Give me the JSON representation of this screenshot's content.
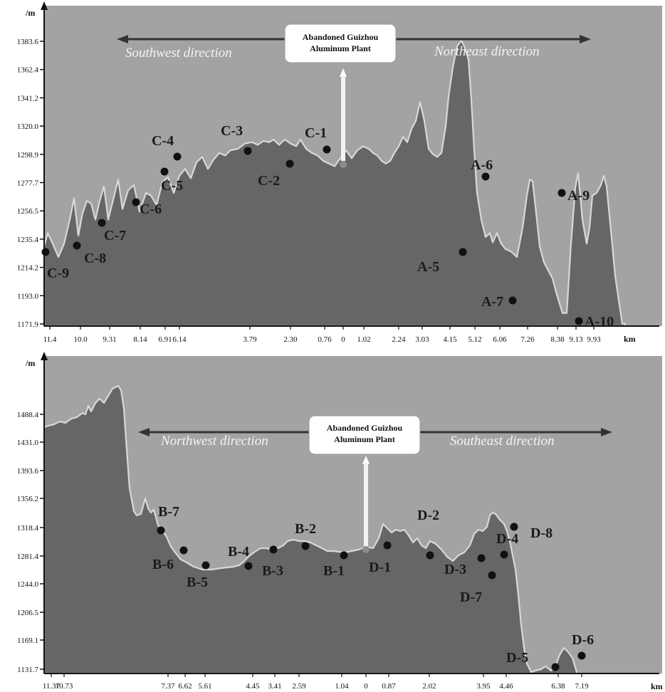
{
  "chart_data": [
    {
      "type": "area",
      "y_unit": "/m",
      "x_unit": "km",
      "y_ticks": [
        "1383.6",
        "1362.4",
        "1341.2",
        "1320.0",
        "1298.9",
        "1277.7",
        "1256.5",
        "1235.4",
        "1214.2",
        "1193.0",
        "1171.9"
      ],
      "x_ticks": [
        "11.4",
        "10.0",
        "9.31",
        "8.14",
        "6.91",
        "6.14",
        "3.79",
        "2.30",
        "0.76",
        "0",
        "1.02",
        "2.24",
        "3.03",
        "4.15",
        "5.12",
        "6.06",
        "7.26",
        "8.38",
        "9.13",
        "9.93"
      ],
      "ylim": [
        1171.9,
        1383.6
      ],
      "directions": {
        "left": "Southwest direction",
        "right": "Northeast direction"
      },
      "annotation": [
        "Abandoned Guizhou",
        "Aluminum Plant"
      ],
      "profile": [
        [
          0,
          1230
        ],
        [
          5,
          1240
        ],
        [
          12,
          1232
        ],
        [
          20,
          1222
        ],
        [
          28,
          1232
        ],
        [
          36,
          1250
        ],
        [
          42,
          1266
        ],
        [
          48,
          1238
        ],
        [
          54,
          1255
        ],
        [
          60,
          1264
        ],
        [
          66,
          1262
        ],
        [
          72,
          1250
        ],
        [
          78,
          1264
        ],
        [
          84,
          1275
        ],
        [
          90,
          1250
        ],
        [
          97,
          1265
        ],
        [
          104,
          1280
        ],
        [
          110,
          1258
        ],
        [
          118,
          1272
        ],
        [
          126,
          1276
        ],
        [
          134,
          1256
        ],
        [
          143,
          1270
        ],
        [
          150,
          1268
        ],
        [
          158,
          1261
        ],
        [
          166,
          1278
        ],
        [
          174,
          1282
        ],
        [
          182,
          1270
        ],
        [
          190,
          1283
        ],
        [
          198,
          1288
        ],
        [
          206,
          1281
        ],
        [
          214,
          1293
        ],
        [
          222,
          1297
        ],
        [
          230,
          1288
        ],
        [
          238,
          1295
        ],
        [
          246,
          1300
        ],
        [
          254,
          1298
        ],
        [
          262,
          1302
        ],
        [
          272,
          1303
        ],
        [
          282,
          1307
        ],
        [
          292,
          1308
        ],
        [
          300,
          1306
        ],
        [
          308,
          1309
        ],
        [
          316,
          1308
        ],
        [
          322,
          1310
        ],
        [
          330,
          1306
        ],
        [
          338,
          1310
        ],
        [
          346,
          1307
        ],
        [
          354,
          1305
        ],
        [
          360,
          1310
        ],
        [
          368,
          1303
        ],
        [
          376,
          1300
        ],
        [
          384,
          1298
        ],
        [
          392,
          1294
        ],
        [
          400,
          1292
        ],
        [
          408,
          1290
        ],
        [
          416,
          1296
        ],
        [
          424,
          1302
        ],
        [
          432,
          1296
        ],
        [
          440,
          1302
        ],
        [
          448,
          1305
        ],
        [
          456,
          1303
        ],
        [
          462,
          1300
        ],
        [
          468,
          1298
        ],
        [
          474,
          1294
        ],
        [
          480,
          1292
        ],
        [
          486,
          1294
        ],
        [
          492,
          1300
        ],
        [
          498,
          1305
        ],
        [
          504,
          1312
        ],
        [
          510,
          1308
        ],
        [
          516,
          1318
        ],
        [
          522,
          1324
        ],
        [
          528,
          1338
        ],
        [
          534,
          1324
        ],
        [
          540,
          1303
        ],
        [
          546,
          1299
        ],
        [
          552,
          1297
        ],
        [
          558,
          1300
        ],
        [
          564,
          1320
        ],
        [
          568,
          1342
        ],
        [
          574,
          1364
        ],
        [
          580,
          1380
        ],
        [
          586,
          1384
        ],
        [
          590,
          1380
        ],
        [
          596,
          1370
        ],
        [
          600,
          1340
        ],
        [
          604,
          1302
        ],
        [
          608,
          1270
        ],
        [
          614,
          1250
        ],
        [
          620,
          1237
        ],
        [
          626,
          1240
        ],
        [
          630,
          1233
        ],
        [
          636,
          1240
        ],
        [
          642,
          1232
        ],
        [
          648,
          1228
        ],
        [
          656,
          1226
        ],
        [
          664,
          1222
        ],
        [
          672,
          1244
        ],
        [
          678,
          1268
        ],
        [
          682,
          1280
        ],
        [
          686,
          1279
        ],
        [
          690,
          1260
        ],
        [
          696,
          1230
        ],
        [
          702,
          1218
        ],
        [
          708,
          1212
        ],
        [
          714,
          1206
        ],
        [
          720,
          1194
        ],
        [
          728,
          1180
        ],
        [
          734,
          1180
        ],
        [
          740,
          1232
        ],
        [
          746,
          1274
        ],
        [
          750,
          1285
        ],
        [
          756,
          1250
        ],
        [
          762,
          1232
        ],
        [
          766,
          1244
        ],
        [
          770,
          1268
        ],
        [
          776,
          1270
        ],
        [
          782,
          1276
        ],
        [
          786,
          1283
        ],
        [
          790,
          1275
        ],
        [
          796,
          1242
        ],
        [
          802,
          1208
        ],
        [
          808,
          1186
        ],
        [
          812,
          1172
        ],
        [
          816,
          1172
        ]
      ],
      "points": [
        {
          "label": "C-9",
          "x": "11.4",
          "y": 1230
        },
        {
          "label": "C-8",
          "x": "10.0",
          "y": 1232
        },
        {
          "label": "C-7",
          "x": "9.31",
          "y": 1249
        },
        {
          "label": "C-6",
          "x": "8.14",
          "y": 1263
        },
        {
          "label": "C-5",
          "x": "6.91",
          "y": 1284
        },
        {
          "label": "C-4",
          "x": "6.14",
          "y": 1299
        },
        {
          "label": "C-3",
          "x": "3.79",
          "y": 1305
        },
        {
          "label": "C-2",
          "x": "2.30",
          "y": 1292
        },
        {
          "label": "C-1",
          "x": "0.76",
          "y": 1305
        },
        {
          "label": "A-5",
          "x": "5.12",
          "y": 1228
        },
        {
          "label": "A-6",
          "x": "6.06",
          "y": 1280
        },
        {
          "label": "A-7",
          "x": "7.26",
          "y": 1191
        },
        {
          "label": "A-9",
          "x": "9.13",
          "y": 1275
        },
        {
          "label": "A-10",
          "x": "9.93",
          "y": 1174
        }
      ]
    },
    {
      "type": "area",
      "y_unit": "/m",
      "x_unit": "km",
      "y_ticks": [
        "1488.4",
        "1431.0",
        "1393.6",
        "1356.2",
        "1318.4",
        "1281.4",
        "1244.0",
        "1206.5",
        "1169.1",
        "1131.7"
      ],
      "x_ticks": [
        "11.37",
        "10.73",
        "7.37",
        "6.62",
        "5.61",
        "4.45",
        "3.41",
        "2.59",
        "1.04",
        "0",
        "0.87",
        "2.02",
        "3.95",
        "4.46",
        "6.38",
        "7.19"
      ],
      "directions": {
        "left": "Northwest direction",
        "right": "Southeast direction"
      },
      "annotation": [
        "Abandoned Guizhou",
        "Aluminum Plant"
      ],
      "points": [
        {
          "label": "B-7",
          "x": "7.37"
        },
        {
          "label": "B-6",
          "x": "6.62"
        },
        {
          "label": "B-5",
          "x": "5.61"
        },
        {
          "label": "B-4",
          "x": "4.45"
        },
        {
          "label": "B-3",
          "x": "3.41"
        },
        {
          "label": "B-2",
          "x": "2.59"
        },
        {
          "label": "B-1",
          "x": "1.04"
        },
        {
          "label": "D-1",
          "x": "0.87"
        },
        {
          "label": "D-2",
          "x": "2.02"
        },
        {
          "label": "D-3",
          "x": "3.95"
        },
        {
          "label": "D-7",
          "x": "3.95"
        },
        {
          "label": "D-4",
          "x": "4.46"
        },
        {
          "label": "D-8",
          "x": "4.46"
        },
        {
          "label": "D-5",
          "x": "6.38"
        },
        {
          "label": "D-6",
          "x": "7.19"
        }
      ]
    }
  ],
  "colors": {
    "background": "#a3a3a3",
    "terrain": "#666666",
    "outline": "#d4d4d4",
    "point": "#111111"
  }
}
